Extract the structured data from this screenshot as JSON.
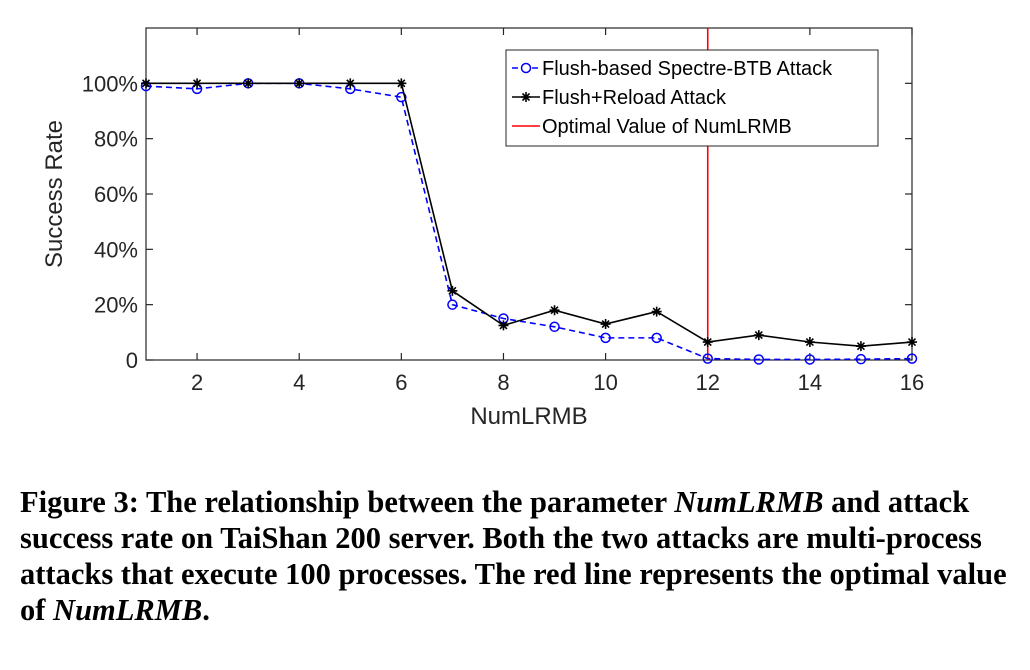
{
  "chart_data": {
    "type": "line",
    "xlabel": "NumLRMB",
    "ylabel": "Success Rate",
    "xlim": [
      1,
      16
    ],
    "ylim": [
      0,
      1.2
    ],
    "x_ticks": [
      2,
      4,
      6,
      8,
      10,
      12,
      14,
      16
    ],
    "x_tick_labels": [
      "2",
      "4",
      "6",
      "8",
      "10",
      "12",
      "14",
      "16"
    ],
    "y_ticks": [
      0,
      0.2,
      0.4,
      0.6,
      0.8,
      1.0
    ],
    "y_tick_labels": [
      "0",
      "20%",
      "40%",
      "60%",
      "80%",
      "100%"
    ],
    "legend_position": "top-right",
    "grid": false,
    "x": [
      1,
      2,
      3,
      4,
      5,
      6,
      7,
      8,
      9,
      10,
      11,
      12,
      13,
      14,
      15,
      16
    ],
    "series": [
      {
        "name": "Flush-based Spectre-BTB Attack",
        "color": "#0000ff",
        "line_style": "dashed",
        "marker": "circle",
        "values": [
          0.99,
          0.98,
          1.0,
          1.0,
          0.98,
          0.95,
          0.2,
          0.15,
          0.12,
          0.08,
          0.08,
          0.005,
          0.002,
          0.002,
          0.003,
          0.005
        ]
      },
      {
        "name": "Flush+Reload Attack",
        "color": "#000000",
        "line_style": "solid",
        "marker": "asterisk",
        "values": [
          1.0,
          1.0,
          1.0,
          1.0,
          1.0,
          1.0,
          0.25,
          0.125,
          0.18,
          0.13,
          0.175,
          0.065,
          0.09,
          0.065,
          0.05,
          0.065
        ]
      }
    ],
    "vertical_lines": [
      {
        "name": "Optimal Value of NumLRMB",
        "x": 12,
        "color": "#ff0000"
      }
    ]
  },
  "caption": {
    "part1": "Figure 3: The relationship between the parameter ",
    "em1": "NumLRMB",
    "part2": " and attack success rate on TaiShan 200 server. Both the two attacks are multi-process attacks that execute 100 processes. The red line represents the optimal value of ",
    "em2": "NumLRMB",
    "part3": "."
  }
}
